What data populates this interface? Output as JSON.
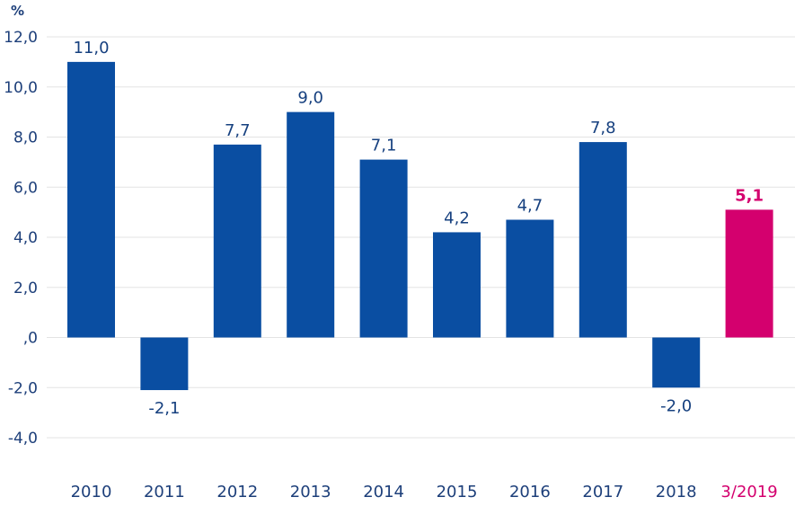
{
  "chart_data": {
    "type": "bar",
    "ylabel": "%",
    "categories": [
      "2010",
      "2011",
      "2012",
      "2013",
      "2014",
      "2015",
      "2016",
      "2017",
      "2018",
      "3/2019"
    ],
    "values": [
      11.0,
      -2.1,
      7.7,
      9.0,
      7.1,
      4.2,
      4.7,
      7.8,
      -2.0,
      5.1
    ],
    "value_labels": [
      "11,0",
      "-2,1",
      "7,7",
      "9,0",
      "7,1",
      "4,2",
      "4,7",
      "7,8",
      "-2,0",
      "5,1"
    ],
    "highlight_index": 9,
    "ylim": [
      -4.0,
      12.0
    ],
    "y_ticks": [
      12.0,
      10.0,
      8.0,
      6.0,
      4.0,
      2.0,
      0.0,
      -2.0,
      -4.0
    ],
    "y_tick_labels": [
      "12,0",
      "10,0",
      "8,0",
      "6,0",
      "4,0",
      "2,0",
      ",0",
      "-2,0",
      "-4,0"
    ],
    "grid": true,
    "colors": {
      "bar": "#0a4ea2",
      "highlight": "#d4006e",
      "grid": "#e3e3e3",
      "axis": "#1d3f7a",
      "label": "#16407f"
    }
  }
}
